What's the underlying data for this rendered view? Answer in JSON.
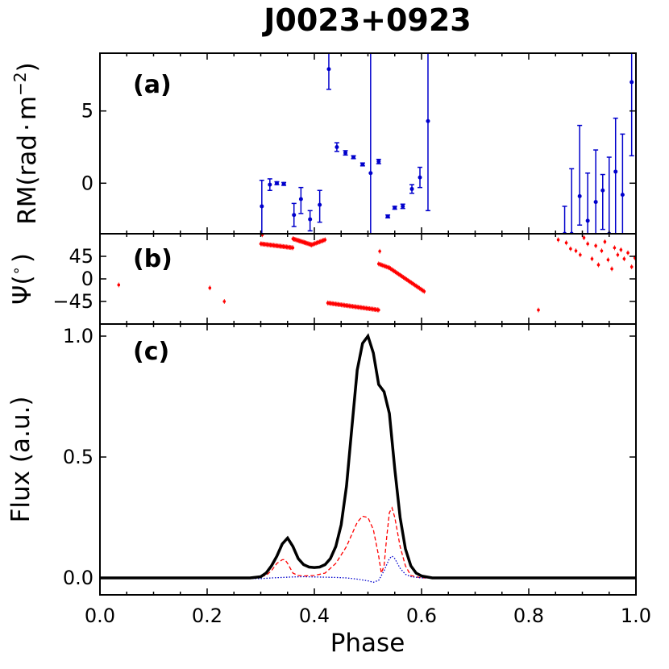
{
  "chart_data": {
    "title": "J0023+0923",
    "xlabel": "Phase",
    "xlim": [
      0.0,
      1.0
    ],
    "xticks": [
      "0.0",
      "0.2",
      "0.4",
      "0.6",
      "0.8",
      "1.0"
    ],
    "panels": [
      {
        "id": "a",
        "label": "(a)",
        "type": "scatter",
        "ylabel_main": "RM(rad",
        "ylabel_dot": "·",
        "ylabel_unit": "m",
        "ylabel_sup": "−2",
        "ylabel_close": ")",
        "ylim": [
          -3.5,
          9.0
        ],
        "yticks": [
          {
            "v": 0,
            "label": "0"
          },
          {
            "v": 5,
            "label": "5"
          }
        ],
        "color": "#0000cc",
        "points": [
          {
            "x": 0.302,
            "y": -1.6,
            "lo": -3.6,
            "hi": 0.2
          },
          {
            "x": 0.317,
            "y": -0.1,
            "lo": -0.5,
            "hi": 0.3
          },
          {
            "x": 0.33,
            "y": 0.0,
            "lo": -0.1,
            "hi": 0.1
          },
          {
            "x": 0.343,
            "y": -0.05,
            "lo": -0.15,
            "hi": 0.05
          },
          {
            "x": 0.362,
            "y": -2.2,
            "lo": -3.0,
            "hi": -1.4
          },
          {
            "x": 0.375,
            "y": -1.1,
            "lo": -2.1,
            "hi": -0.3
          },
          {
            "x": 0.392,
            "y": -2.5,
            "lo": -3.3,
            "hi": -1.9
          },
          {
            "x": 0.41,
            "y": -1.5,
            "lo": -2.7,
            "hi": -0.5
          },
          {
            "x": 0.427,
            "y": 7.9,
            "lo": 6.5,
            "hi": 9.0
          },
          {
            "x": 0.442,
            "y": 2.5,
            "lo": 2.2,
            "hi": 2.8
          },
          {
            "x": 0.458,
            "y": 2.1,
            "lo": 1.95,
            "hi": 2.25
          },
          {
            "x": 0.473,
            "y": 1.8,
            "lo": 1.7,
            "hi": 1.9
          },
          {
            "x": 0.49,
            "y": 1.3,
            "lo": 1.2,
            "hi": 1.4
          },
          {
            "x": 0.505,
            "y": 0.7,
            "lo": -3.5,
            "hi": 9.0
          },
          {
            "x": 0.52,
            "y": 1.5,
            "lo": 1.35,
            "hi": 1.65
          },
          {
            "x": 0.537,
            "y": -2.3,
            "lo": -2.4,
            "hi": -2.2
          },
          {
            "x": 0.55,
            "y": -1.7,
            "lo": -1.8,
            "hi": -1.6
          },
          {
            "x": 0.565,
            "y": -1.6,
            "lo": -1.75,
            "hi": -1.45
          },
          {
            "x": 0.582,
            "y": -0.4,
            "lo": -0.7,
            "hi": -0.1
          },
          {
            "x": 0.597,
            "y": 0.4,
            "lo": -0.3,
            "hi": 1.1
          },
          {
            "x": 0.612,
            "y": 4.3,
            "lo": -1.9,
            "hi": 9.0
          },
          {
            "x": 0.867,
            "y": -3.5,
            "lo": -3.5,
            "hi": -1.6
          },
          {
            "x": 0.88,
            "y": -3.5,
            "lo": -3.5,
            "hi": 1.0
          },
          {
            "x": 0.895,
            "y": -0.9,
            "lo": -2.9,
            "hi": 4.0
          },
          {
            "x": 0.91,
            "y": -2.6,
            "lo": -3.5,
            "hi": 0.7
          },
          {
            "x": 0.925,
            "y": -1.3,
            "lo": -3.5,
            "hi": 2.3
          },
          {
            "x": 0.938,
            "y": -0.5,
            "lo": -3.2,
            "hi": 0.6
          },
          {
            "x": 0.95,
            "y": -3.5,
            "lo": -3.5,
            "hi": 1.8
          },
          {
            "x": 0.962,
            "y": 0.8,
            "lo": -3.5,
            "hi": 4.5
          },
          {
            "x": 0.975,
            "y": -0.8,
            "lo": -3.5,
            "hi": 3.4
          },
          {
            "x": 0.992,
            "y": 7.0,
            "lo": 1.9,
            "hi": 9.0
          }
        ]
      },
      {
        "id": "b",
        "label": "(b)",
        "type": "scatter",
        "ylabel_main": "Ψ(",
        "ylabel_deg": "∘",
        "ylabel_close": ")",
        "ylim": [
          -90,
          90
        ],
        "yticks": [
          {
            "v": 45,
            "label": "45"
          },
          {
            "v": 0,
            "label": "0"
          },
          {
            "v": -45,
            "label": "−45"
          }
        ],
        "color": "#ff0000",
        "segments": [
          {
            "x0": 0.3,
            "x1": 0.36,
            "y0": 70,
            "y1": 62,
            "n": 30
          },
          {
            "x0": 0.36,
            "x1": 0.395,
            "y0": 80,
            "y1": 68,
            "n": 20
          },
          {
            "x0": 0.395,
            "x1": 0.42,
            "y0": 68,
            "y1": 78,
            "n": 12
          },
          {
            "x0": 0.425,
            "x1": 0.52,
            "y0": -48,
            "y1": -62,
            "n": 45
          },
          {
            "x0": 0.52,
            "x1": 0.54,
            "y0": 30,
            "y1": 22,
            "n": 8
          },
          {
            "x0": 0.54,
            "x1": 0.605,
            "y0": 22,
            "y1": -25,
            "n": 30
          }
        ],
        "points": [
          {
            "x": 0.035,
            "y": -12
          },
          {
            "x": 0.205,
            "y": -18
          },
          {
            "x": 0.232,
            "y": -45
          },
          {
            "x": 0.303,
            "y": 88
          },
          {
            "x": 0.522,
            "y": 55
          },
          {
            "x": 0.818,
            "y": -62
          },
          {
            "x": 0.855,
            "y": 78
          },
          {
            "x": 0.87,
            "y": 72
          },
          {
            "x": 0.878,
            "y": 60
          },
          {
            "x": 0.888,
            "y": 56
          },
          {
            "x": 0.896,
            "y": 48
          },
          {
            "x": 0.903,
            "y": 82
          },
          {
            "x": 0.91,
            "y": 70
          },
          {
            "x": 0.918,
            "y": 40
          },
          {
            "x": 0.925,
            "y": 66
          },
          {
            "x": 0.93,
            "y": 28
          },
          {
            "x": 0.936,
            "y": 56
          },
          {
            "x": 0.942,
            "y": 74
          },
          {
            "x": 0.948,
            "y": 38
          },
          {
            "x": 0.955,
            "y": 20
          },
          {
            "x": 0.96,
            "y": 62
          },
          {
            "x": 0.966,
            "y": 48
          },
          {
            "x": 0.972,
            "y": 58
          },
          {
            "x": 0.978,
            "y": 40
          },
          {
            "x": 0.985,
            "y": 52
          },
          {
            "x": 0.992,
            "y": 24
          },
          {
            "x": 0.998,
            "y": 42
          }
        ]
      },
      {
        "id": "c",
        "label": "(c)",
        "type": "line",
        "ylabel": "Flux (a.u.)",
        "ylim": [
          -0.07,
          1.05
        ],
        "yticks": [
          {
            "v": 0.0,
            "label": "0.0"
          },
          {
            "v": 0.5,
            "label": "0.5"
          },
          {
            "v": 1.0,
            "label": "1.0"
          }
        ],
        "series": [
          {
            "style": "total",
            "color": "#000000",
            "x": [
              0.0,
              0.28,
              0.3,
              0.31,
              0.32,
              0.33,
              0.34,
              0.35,
              0.36,
              0.37,
              0.38,
              0.39,
              0.4,
              0.41,
              0.42,
              0.43,
              0.44,
              0.45,
              0.46,
              0.47,
              0.48,
              0.49,
              0.5,
              0.51,
              0.52,
              0.53,
              0.54,
              0.55,
              0.56,
              0.57,
              0.58,
              0.59,
              0.6,
              0.62,
              1.0
            ],
            "y": [
              0.0,
              0.0,
              0.005,
              0.02,
              0.05,
              0.09,
              0.14,
              0.165,
              0.13,
              0.08,
              0.055,
              0.045,
              0.043,
              0.045,
              0.055,
              0.08,
              0.13,
              0.22,
              0.38,
              0.62,
              0.86,
              0.97,
              1.0,
              0.93,
              0.8,
              0.77,
              0.68,
              0.45,
              0.25,
              0.12,
              0.05,
              0.02,
              0.008,
              0.0,
              0.0
            ]
          },
          {
            "style": "linear",
            "color": "#ff0000",
            "x": [
              0.0,
              0.28,
              0.3,
              0.31,
              0.32,
              0.33,
              0.34,
              0.345,
              0.35,
              0.355,
              0.36,
              0.37,
              0.38,
              0.4,
              0.42,
              0.44,
              0.46,
              0.47,
              0.48,
              0.49,
              0.5,
              0.51,
              0.52,
              0.525,
              0.53,
              0.535,
              0.54,
              0.545,
              0.55,
              0.56,
              0.57,
              0.58,
              0.6,
              0.62,
              1.0
            ],
            "y": [
              0.0,
              0.0,
              0.005,
              0.01,
              0.03,
              0.06,
              0.075,
              0.076,
              0.06,
              0.04,
              0.02,
              0.01,
              0.008,
              0.01,
              0.02,
              0.06,
              0.13,
              0.18,
              0.23,
              0.255,
              0.25,
              0.2,
              0.09,
              0.02,
              0.05,
              0.17,
              0.27,
              0.29,
              0.25,
              0.13,
              0.05,
              0.01,
              0.0,
              0.0,
              0.0
            ]
          },
          {
            "style": "circular",
            "color": "#0000cc",
            "x": [
              0.0,
              0.3,
              0.32,
              0.34,
              0.36,
              0.38,
              0.4,
              0.42,
              0.44,
              0.46,
              0.48,
              0.5,
              0.51,
              0.52,
              0.53,
              0.54,
              0.545,
              0.55,
              0.56,
              0.57,
              0.58,
              0.6,
              1.0
            ],
            "y": [
              0.0,
              -0.003,
              0.0,
              0.002,
              0.004,
              0.005,
              0.004,
              0.003,
              0.002,
              0.0,
              -0.005,
              -0.012,
              -0.018,
              -0.01,
              0.03,
              0.08,
              0.09,
              0.08,
              0.04,
              0.015,
              0.005,
              0.0,
              0.0
            ]
          }
        ]
      }
    ]
  }
}
